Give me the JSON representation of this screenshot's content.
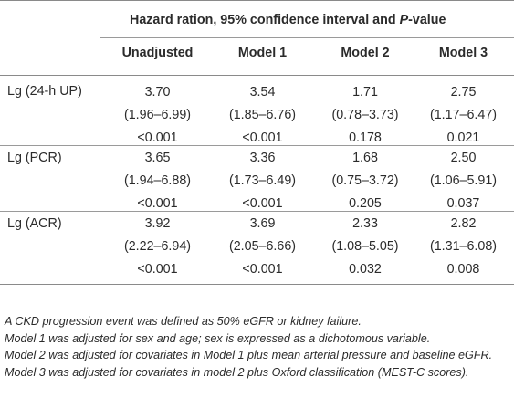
{
  "table": {
    "title_prefix": "Hazard ration, 95% confidence interval and ",
    "title_italic": "P",
    "title_suffix": "-value",
    "columns": [
      "Unadjusted",
      "Model 1",
      "Model 2",
      "Model 3"
    ],
    "rows": [
      {
        "label": "Lg (24-h UP)",
        "cells": [
          {
            "hr": "3.70",
            "ci": "(1.96–6.99)",
            "p": "<0.001"
          },
          {
            "hr": "3.54",
            "ci": "(1.85–6.76)",
            "p": "<0.001"
          },
          {
            "hr": "1.71",
            "ci": "(0.78–3.73)",
            "p": "0.178"
          },
          {
            "hr": "2.75",
            "ci": "(1.17–6.47)",
            "p": "0.021"
          }
        ]
      },
      {
        "label": "Lg (PCR)",
        "cells": [
          {
            "hr": "3.65",
            "ci": "(1.94–6.88)",
            "p": "<0.001"
          },
          {
            "hr": "3.36",
            "ci": "(1.73–6.49)",
            "p": "<0.001"
          },
          {
            "hr": "1.68",
            "ci": "(0.75–3.72)",
            "p": "0.205"
          },
          {
            "hr": "2.50",
            "ci": "(1.06–5.91)",
            "p": "0.037"
          }
        ]
      },
      {
        "label": "Lg (ACR)",
        "cells": [
          {
            "hr": "3.92",
            "ci": "(2.22–6.94)",
            "p": "<0.001"
          },
          {
            "hr": "3.69",
            "ci": "(2.05–6.66)",
            "p": "<0.001"
          },
          {
            "hr": "2.33",
            "ci": "(1.08–5.05)",
            "p": "0.032"
          },
          {
            "hr": "2.82",
            "ci": "(1.31–6.08)",
            "p": "0.008"
          }
        ]
      }
    ]
  },
  "footnotes": [
    "A CKD progression event was defined as 50% eGFR or kidney failure.",
    "Model 1 was adjusted for sex and age; sex is expressed as a dichotomous variable.",
    "Model 2 was adjusted for covariates in Model 1 plus mean arterial pressure and baseline eGFR.",
    "Model 3 was adjusted for covariates in model 2 plus Oxford classification (MEST-C scores)."
  ]
}
